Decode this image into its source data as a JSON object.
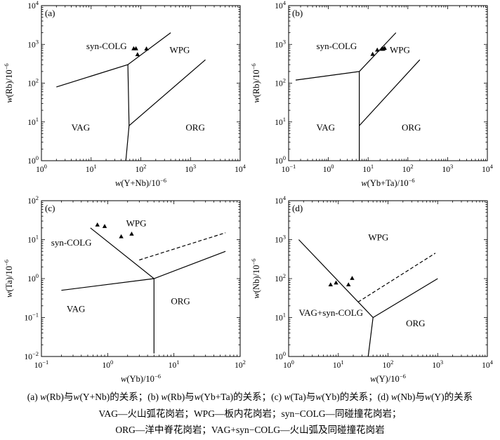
{
  "chart_data": [
    {
      "type": "scatter",
      "panel_label": "(a)",
      "xscale": "log",
      "yscale": "log",
      "xlim": [
        1,
        10000
      ],
      "ylim": [
        1,
        10000
      ],
      "xticks": [
        {
          "v": 1,
          "e": "0"
        },
        {
          "v": 10,
          "e": "1"
        },
        {
          "v": 100,
          "e": "2"
        },
        {
          "v": 1000,
          "e": "3"
        },
        {
          "v": 10000,
          "e": "4"
        }
      ],
      "yticks": [
        {
          "v": 1,
          "e": "0"
        },
        {
          "v": 10,
          "e": "1"
        },
        {
          "v": 100,
          "e": "2"
        },
        {
          "v": 1000,
          "e": "3"
        },
        {
          "v": 10000,
          "e": "4"
        }
      ],
      "xlabel": {
        "w": "w",
        "pre": "(Y+Nb)/10",
        "exp": "−6"
      },
      "ylabel": {
        "w": "w",
        "pre": "(Rb)/10",
        "exp": "−6"
      },
      "regions": [
        {
          "text": "syn-COLG",
          "x": 8,
          "y": 750
        },
        {
          "text": "WPG",
          "x": 380,
          "y": 600
        },
        {
          "text": "VAG",
          "x": 4,
          "y": 6
        },
        {
          "text": "ORG",
          "x": 800,
          "y": 6
        }
      ],
      "lines": [
        {
          "style": "solid",
          "points": [
            [
              2,
              80
            ],
            [
              55,
              300
            ],
            [
              400,
              2000
            ]
          ]
        },
        {
          "style": "solid",
          "points": [
            [
              55,
              300
            ],
            [
              58,
              8
            ],
            [
              2000,
              400
            ]
          ]
        },
        {
          "style": "solid",
          "points": [
            [
              58,
              8
            ],
            [
              50,
              1
            ]
          ]
        }
      ],
      "points": [
        [
          72,
          780
        ],
        [
          80,
          780
        ],
        [
          86,
          550
        ],
        [
          130,
          770
        ]
      ]
    },
    {
      "type": "scatter",
      "panel_label": "(b)",
      "xscale": "log",
      "yscale": "log",
      "xlim": [
        0.1,
        10000
      ],
      "ylim": [
        1,
        10000
      ],
      "xticks": [
        {
          "v": 0.1,
          "e": "−1"
        },
        {
          "v": 1,
          "e": "0"
        },
        {
          "v": 10,
          "e": "1"
        },
        {
          "v": 100,
          "e": "2"
        },
        {
          "v": 1000,
          "e": "3"
        },
        {
          "v": 10000,
          "e": "4"
        }
      ],
      "yticks": [
        {
          "v": 1,
          "e": "0"
        },
        {
          "v": 10,
          "e": "1"
        },
        {
          "v": 100,
          "e": "2"
        },
        {
          "v": 1000,
          "e": "3"
        },
        {
          "v": 10000,
          "e": "4"
        }
      ],
      "xlabel": {
        "w": "w",
        "pre": "(Yb+Ta)/10",
        "exp": "−6"
      },
      "ylabel": {
        "w": "w",
        "pre": "(Rb)/10",
        "exp": "−6"
      },
      "regions": [
        {
          "text": "syn-COLG",
          "x": 0.5,
          "y": 750
        },
        {
          "text": "WPG",
          "x": 35,
          "y": 600
        },
        {
          "text": "VAG",
          "x": 0.5,
          "y": 6
        },
        {
          "text": "ORG",
          "x": 70,
          "y": 6
        }
      ],
      "lines": [
        {
          "style": "solid",
          "points": [
            [
              0.15,
              120
            ],
            [
              6,
              200
            ],
            [
              50,
              2000
            ]
          ]
        },
        {
          "style": "solid",
          "points": [
            [
              6,
              200
            ],
            [
              6,
              1
            ]
          ]
        },
        {
          "style": "solid",
          "points": [
            [
              6,
              8
            ],
            [
              200,
              400
            ]
          ]
        }
      ],
      "points": [
        [
          13,
          560
        ],
        [
          17,
          720
        ],
        [
          22,
          760
        ],
        [
          24,
          760
        ],
        [
          26,
          800
        ]
      ]
    },
    {
      "type": "scatter",
      "panel_label": "(c)",
      "xscale": "log",
      "yscale": "log",
      "xlim": [
        0.1,
        100
      ],
      "ylim": [
        0.01,
        100
      ],
      "xticks": [
        {
          "v": 0.1,
          "e": "−1"
        },
        {
          "v": 1,
          "e": "0"
        },
        {
          "v": 10,
          "e": "1"
        },
        {
          "v": 100,
          "e": "2"
        }
      ],
      "yticks": [
        {
          "v": 0.01,
          "e": "−2"
        },
        {
          "v": 0.1,
          "e": "−1"
        },
        {
          "v": 1,
          "e": "0"
        },
        {
          "v": 10,
          "e": "1"
        },
        {
          "v": 100,
          "e": "2"
        }
      ],
      "xlabel": {
        "w": "w",
        "pre": "(Yb)/10",
        "exp": "−6"
      },
      "ylabel": {
        "w": "w",
        "pre": "(Ta)/10",
        "exp": "−6"
      },
      "regions": [
        {
          "text": "syn-COLG",
          "x": 0.14,
          "y": 7
        },
        {
          "text": "WPG",
          "x": 1.9,
          "y": 22
        },
        {
          "text": "VAG",
          "x": 0.24,
          "y": 0.14
        },
        {
          "text": "ORG",
          "x": 9,
          "y": 0.22
        }
      ],
      "lines": [
        {
          "style": "solid",
          "points": [
            [
              0.55,
              20
            ],
            [
              5,
              1
            ],
            [
              5,
              0.012
            ]
          ]
        },
        {
          "style": "solid",
          "points": [
            [
              0.2,
              0.5
            ],
            [
              5,
              1
            ],
            [
              60,
              5
            ]
          ]
        },
        {
          "style": "dashed",
          "points": [
            [
              3,
              3
            ],
            [
              60,
              15
            ]
          ]
        }
      ],
      "points": [
        [
          0.7,
          24
        ],
        [
          0.9,
          22
        ],
        [
          1.6,
          12
        ],
        [
          2.3,
          14
        ]
      ]
    },
    {
      "type": "scatter",
      "panel_label": "(d)",
      "xscale": "log",
      "yscale": "log",
      "xlim": [
        1,
        10000
      ],
      "ylim": [
        1,
        10000
      ],
      "xticks": [
        {
          "v": 1,
          "e": "0"
        },
        {
          "v": 10,
          "e": "1"
        },
        {
          "v": 100,
          "e": "2"
        },
        {
          "v": 1000,
          "e": "3"
        },
        {
          "v": 10000,
          "e": "4"
        }
      ],
      "yticks": [
        {
          "v": 1,
          "e": "0"
        },
        {
          "v": 10,
          "e": "1"
        },
        {
          "v": 100,
          "e": "2"
        },
        {
          "v": 1000,
          "e": "3"
        },
        {
          "v": 10000,
          "e": "4"
        }
      ],
      "xlabel": {
        "w": "w",
        "pre": "(Y)/10",
        "exp": "−6"
      },
      "ylabel": {
        "w": "w",
        "pre": "(Nb)/10",
        "exp": "−6"
      },
      "regions": [
        {
          "text": "WPG",
          "x": 40,
          "y": 950
        },
        {
          "text": "VAG+syn-COLG",
          "x": 1.6,
          "y": 11
        },
        {
          "text": "ORG",
          "x": 230,
          "y": 6
        }
      ],
      "lines": [
        {
          "style": "solid",
          "points": [
            [
              1.6,
              1000
            ],
            [
              50,
              10
            ],
            [
              40,
              1
            ]
          ]
        },
        {
          "style": "solid",
          "points": [
            [
              50,
              10
            ],
            [
              1000,
              100
            ]
          ]
        },
        {
          "style": "dashed",
          "points": [
            [
              25,
              25
            ],
            [
              900,
              450
            ]
          ]
        }
      ],
      "points": [
        [
          7,
          70
        ],
        [
          9,
          78
        ],
        [
          16,
          70
        ],
        [
          19,
          102
        ]
      ]
    }
  ],
  "caption": {
    "line1": [
      {
        "t": "(a) "
      },
      {
        "t": "w",
        "i": true
      },
      {
        "t": "(Rb)与"
      },
      {
        "t": "w",
        "i": true
      },
      {
        "t": "(Y+Nb)的关系；(b) "
      },
      {
        "t": "w",
        "i": true
      },
      {
        "t": "(Rb)与"
      },
      {
        "t": "w",
        "i": true
      },
      {
        "t": "(Yb+Ta)的关系；(c) "
      },
      {
        "t": "w",
        "i": true
      },
      {
        "t": "(Ta)与"
      },
      {
        "t": "w",
        "i": true
      },
      {
        "t": "(Yb)的关系；(d) "
      },
      {
        "t": "w",
        "i": true
      },
      {
        "t": "(Nb)与"
      },
      {
        "t": "w",
        "i": true
      },
      {
        "t": "(Y)的关系"
      }
    ],
    "line2": "VAG—火山弧花岗岩；WPG—板内花岗岩；syn−COLG—同碰撞花岗岩；",
    "line3": "ORG—洋中脊花岗岩；VAG+syn−COLG—火山弧及同碰撞花岗岩"
  }
}
